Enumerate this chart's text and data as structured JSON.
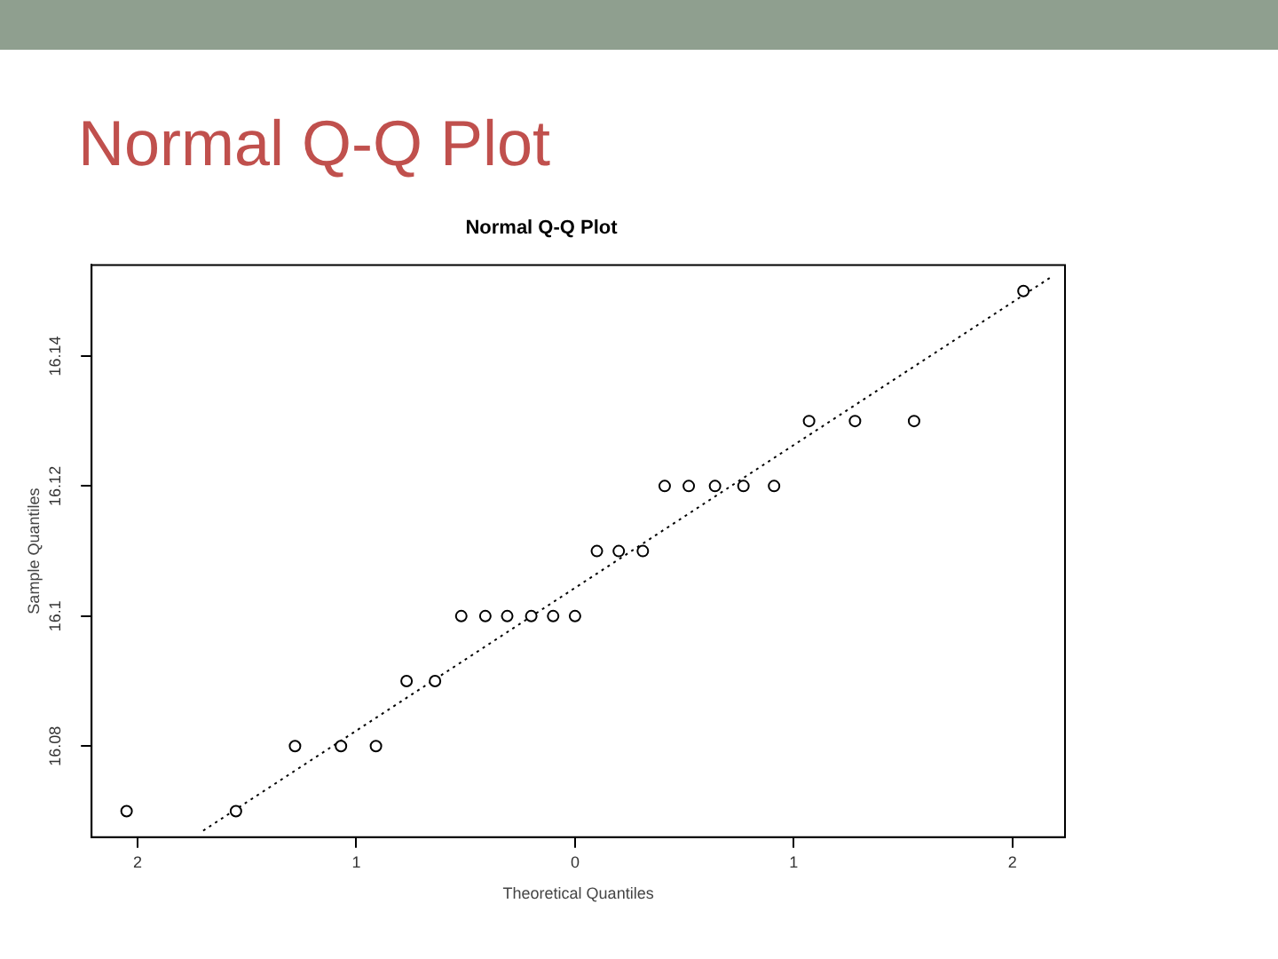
{
  "chart_data": {
    "type": "scatter",
    "title": "Normal Q-Q Plot",
    "subtitle": "Normal Q-Q Plot",
    "xlabel": "Theoretical Quantiles",
    "ylabel": "Sample Quantiles",
    "xlim": [
      -2.21,
      2.24
    ],
    "ylim": [
      16.066,
      16.154
    ],
    "xticks": [
      {
        "value": -2,
        "label": "2"
      },
      {
        "value": -1,
        "label": "1"
      },
      0,
      1,
      2
    ],
    "yticks": [
      16.08,
      16.1,
      16.12,
      16.14
    ],
    "grid": false,
    "legend": false,
    "marker": "circle",
    "series": [
      {
        "type": "scatter",
        "color": "#000000",
        "x": [
          -2.05,
          -1.55,
          -1.28,
          -1.07,
          -0.91,
          -0.77,
          -0.64,
          -0.52,
          -0.41,
          -0.31,
          -0.2,
          -0.1,
          0,
          0.1,
          0.2,
          0.31,
          0.41,
          0.52,
          0.64,
          0.77,
          0.91,
          1.07,
          1.28,
          1.55,
          2.05
        ],
        "values": [
          16.07,
          16.07,
          16.08,
          16.08,
          16.08,
          16.09,
          16.09,
          16.1,
          16.1,
          16.1,
          16.1,
          16.1,
          16.1,
          16.11,
          16.11,
          16.11,
          16.12,
          16.12,
          16.12,
          16.12,
          16.12,
          16.13,
          16.13,
          16.13,
          16.15
        ]
      },
      {
        "type": "line",
        "color": "#000000",
        "line_style": "dotted",
        "marker": "none",
        "x": [
          -1.7,
          2.17
        ],
        "values": [
          16.067,
          16.152
        ]
      }
    ]
  }
}
